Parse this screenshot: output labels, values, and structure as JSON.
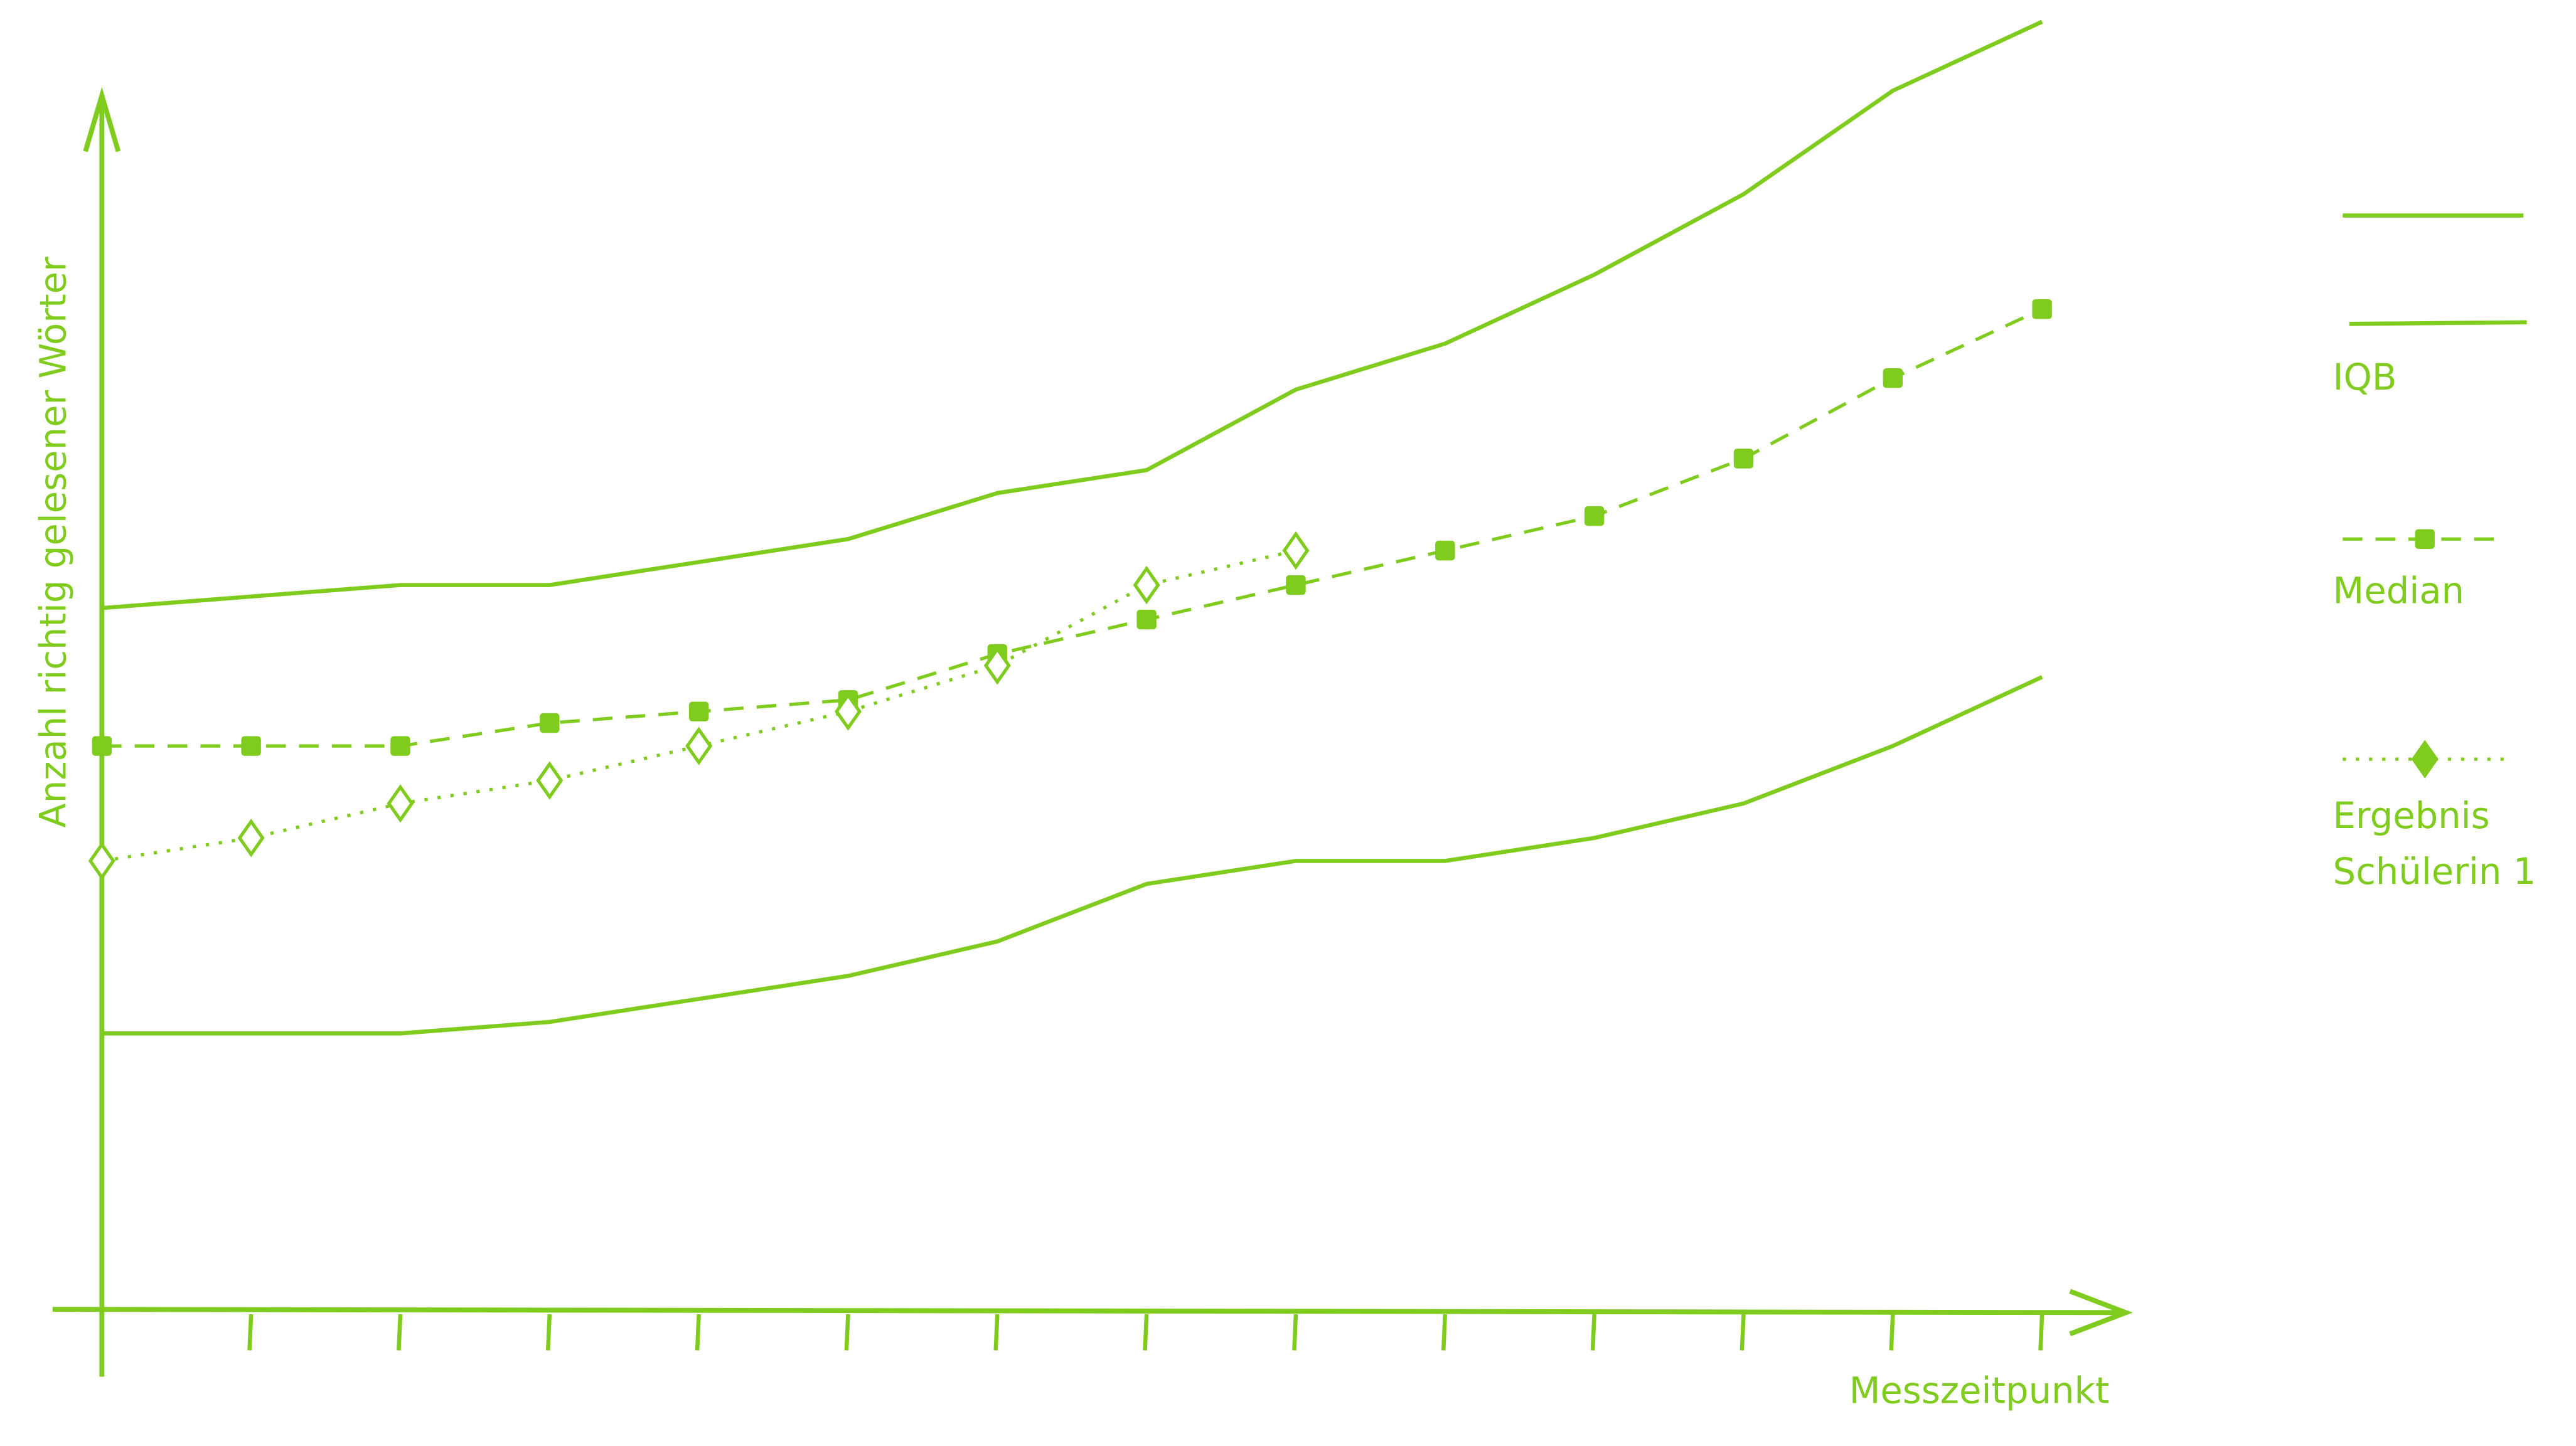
{
  "chart_data": {
    "type": "line",
    "xlabel": "Messzeitpunkt",
    "ylabel": "Anzahl richtig gelesener Wörter",
    "categories": [
      null,
      null,
      null,
      null,
      null,
      null,
      null,
      null,
      null,
      null,
      null,
      null,
      null,
      null
    ],
    "ylim": [
      0,
      105
    ],
    "legend": "right",
    "series": [
      {
        "name": "IQB",
        "color": "#7fcc1f",
        "style": "solid",
        "values": [
          61,
          62,
          63,
          63,
          65,
          67,
          71,
          73,
          80,
          84,
          90,
          97,
          106,
          112
        ]
      },
      {
        "color": "#7fcc1f",
        "style": "solid",
        "values": [
          24,
          24,
          24,
          25,
          27,
          29,
          32,
          37,
          39,
          39,
          41,
          44,
          49,
          55
        ]
      },
      {
        "name": "Median",
        "color": "#7fcc1f",
        "style": "dashed",
        "marker": "square",
        "values": [
          49,
          49,
          49,
          51,
          52,
          53,
          57,
          60,
          63,
          66,
          69,
          74,
          81,
          87
        ]
      },
      {
        "name": "Ergebnis Schülerin 1",
        "color": "#7fcc1f",
        "style": "dotted",
        "marker": "diamond",
        "values": [
          39,
          41,
          44,
          46,
          49,
          52,
          56,
          63,
          66,
          null,
          null,
          null,
          null,
          null
        ]
      }
    ]
  }
}
